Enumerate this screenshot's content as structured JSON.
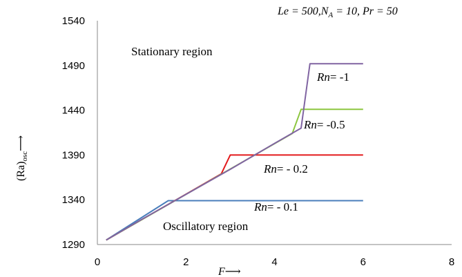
{
  "chart_data": {
    "type": "line",
    "title": "Le = 500, Nₐ = 10, Pr = 50",
    "title_parts": [
      "Le = 500,",
      "N",
      "A",
      " = 10, Pr = 50"
    ],
    "xlabel": "F⟶",
    "ylabel": "(Ra)osc⟶",
    "ylabel_parts": [
      "(Ra)",
      "osc",
      "⟶"
    ],
    "xlim": [
      0,
      8
    ],
    "ylim": [
      1290,
      1540
    ],
    "x_ticks": [
      0,
      2,
      4,
      6,
      8
    ],
    "y_ticks": [
      1290,
      1340,
      1390,
      1440,
      1490,
      1540
    ],
    "grid": false,
    "region_labels": {
      "stationary": "Stationary region",
      "oscillatory": "Oscillatory region"
    },
    "series": [
      {
        "name": "Rn = - 0.1",
        "color": "#4a7ebb",
        "x": [
          0.2,
          1.6,
          6.0
        ],
        "y": [
          1295,
          1339,
          1339
        ]
      },
      {
        "name": "Rn = - 0.2",
        "color": "#e31a1c",
        "x": [
          0.2,
          2.8,
          3.0,
          6.0
        ],
        "y": [
          1295,
          1369,
          1390,
          1390
        ]
      },
      {
        "name": "Rn = -0.5",
        "color": "#8cc63f",
        "x": [
          0.2,
          4.4,
          4.6,
          6.0
        ],
        "y": [
          1295,
          1414,
          1441,
          1441
        ]
      },
      {
        "name": "Rn = -1",
        "color": "#8064a2",
        "x": [
          0.2,
          1.0,
          2.0,
          3.0,
          4.0,
          4.6,
          4.8,
          6.0
        ],
        "y": [
          1295,
          1318,
          1346,
          1374,
          1403,
          1420,
          1492,
          1492
        ]
      }
    ],
    "series_labels": [
      {
        "rn": "Rn",
        "value": "= - 0.1"
      },
      {
        "rn": "Rn",
        "value": "= - 0.2"
      },
      {
        "rn": "Rn",
        "value": "= -0.5"
      },
      {
        "rn": "Rn",
        "value": "= -1"
      }
    ]
  }
}
